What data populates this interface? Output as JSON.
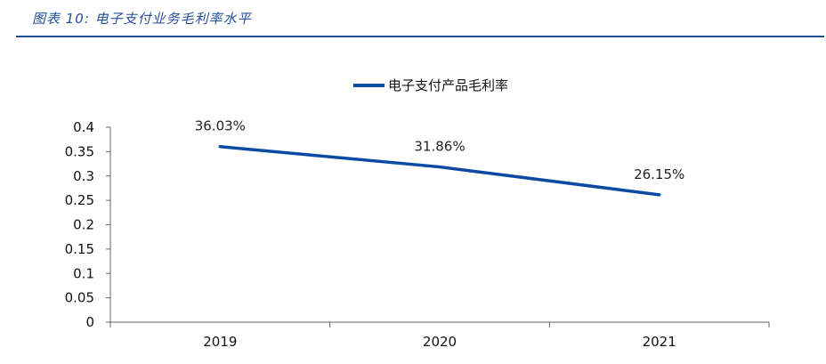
{
  "caption": "图表 10:  电子支付业务毛利率水平",
  "colors": {
    "series": "#0a4aa3",
    "caption": "#1f4e9a",
    "axis": "#666666"
  },
  "chart_data": {
    "type": "line",
    "title": "",
    "xlabel": "",
    "ylabel": "",
    "x": [
      "2019",
      "2020",
      "2021"
    ],
    "series": [
      {
        "name": "电子支付产品毛利率",
        "values": [
          0.3603,
          0.3186,
          0.2615
        ],
        "labels": [
          "36.03%",
          "31.86%",
          "26.15%"
        ]
      }
    ],
    "ylim": [
      0,
      0.4
    ],
    "yticks": [
      "0",
      "0.05",
      "0.1",
      "0.15",
      "0.2",
      "0.25",
      "0.3",
      "0.35",
      "0.4"
    ],
    "legend_position": "top-center",
    "grid": false
  }
}
